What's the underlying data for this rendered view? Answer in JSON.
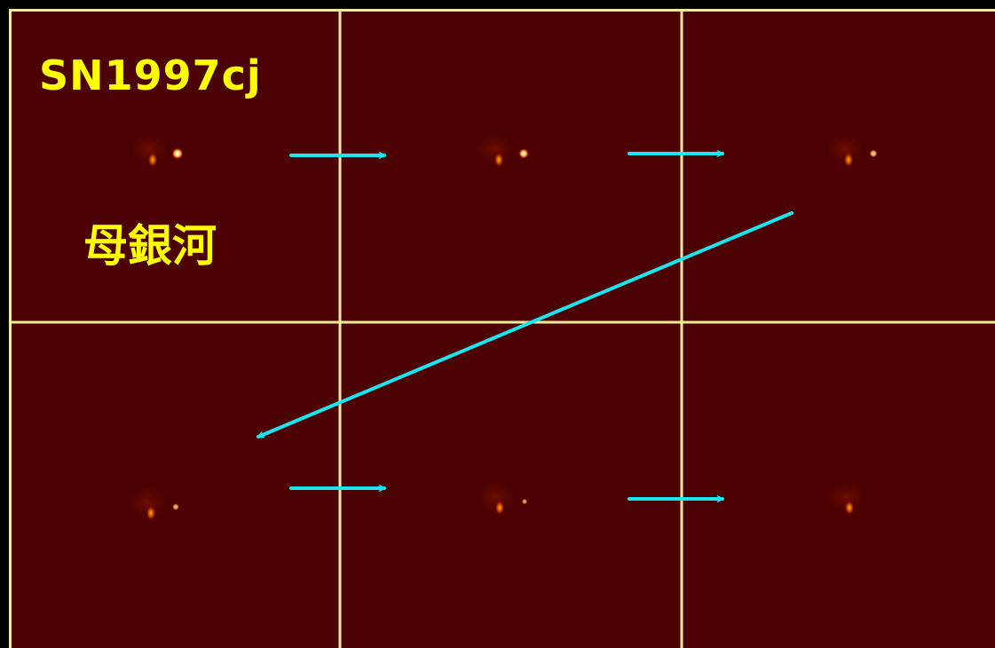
{
  "labels": {
    "supernova": "SN1997cj",
    "host_galaxy": "母銀河"
  },
  "colors": {
    "frame_background": "#4a0000",
    "grid_lines": "#f2eb9a",
    "label_text": "#ffff00",
    "arrows": "#19e6f0",
    "host_glow": "#ff6a00",
    "supernova_core": "#ffffff"
  },
  "panels": [
    {
      "row": 1,
      "column": 1,
      "supernova_brightness": 1.0
    },
    {
      "row": 1,
      "column": 2,
      "supernova_brightness": 0.85
    },
    {
      "row": 1,
      "column": 3,
      "supernova_brightness": 0.6
    },
    {
      "row": 2,
      "column": 1,
      "supernova_brightness": 0.45
    },
    {
      "row": 2,
      "column": 2,
      "supernova_brightness": 0.3
    },
    {
      "row": 2,
      "column": 3,
      "supernova_brightness": 0.0
    }
  ]
}
